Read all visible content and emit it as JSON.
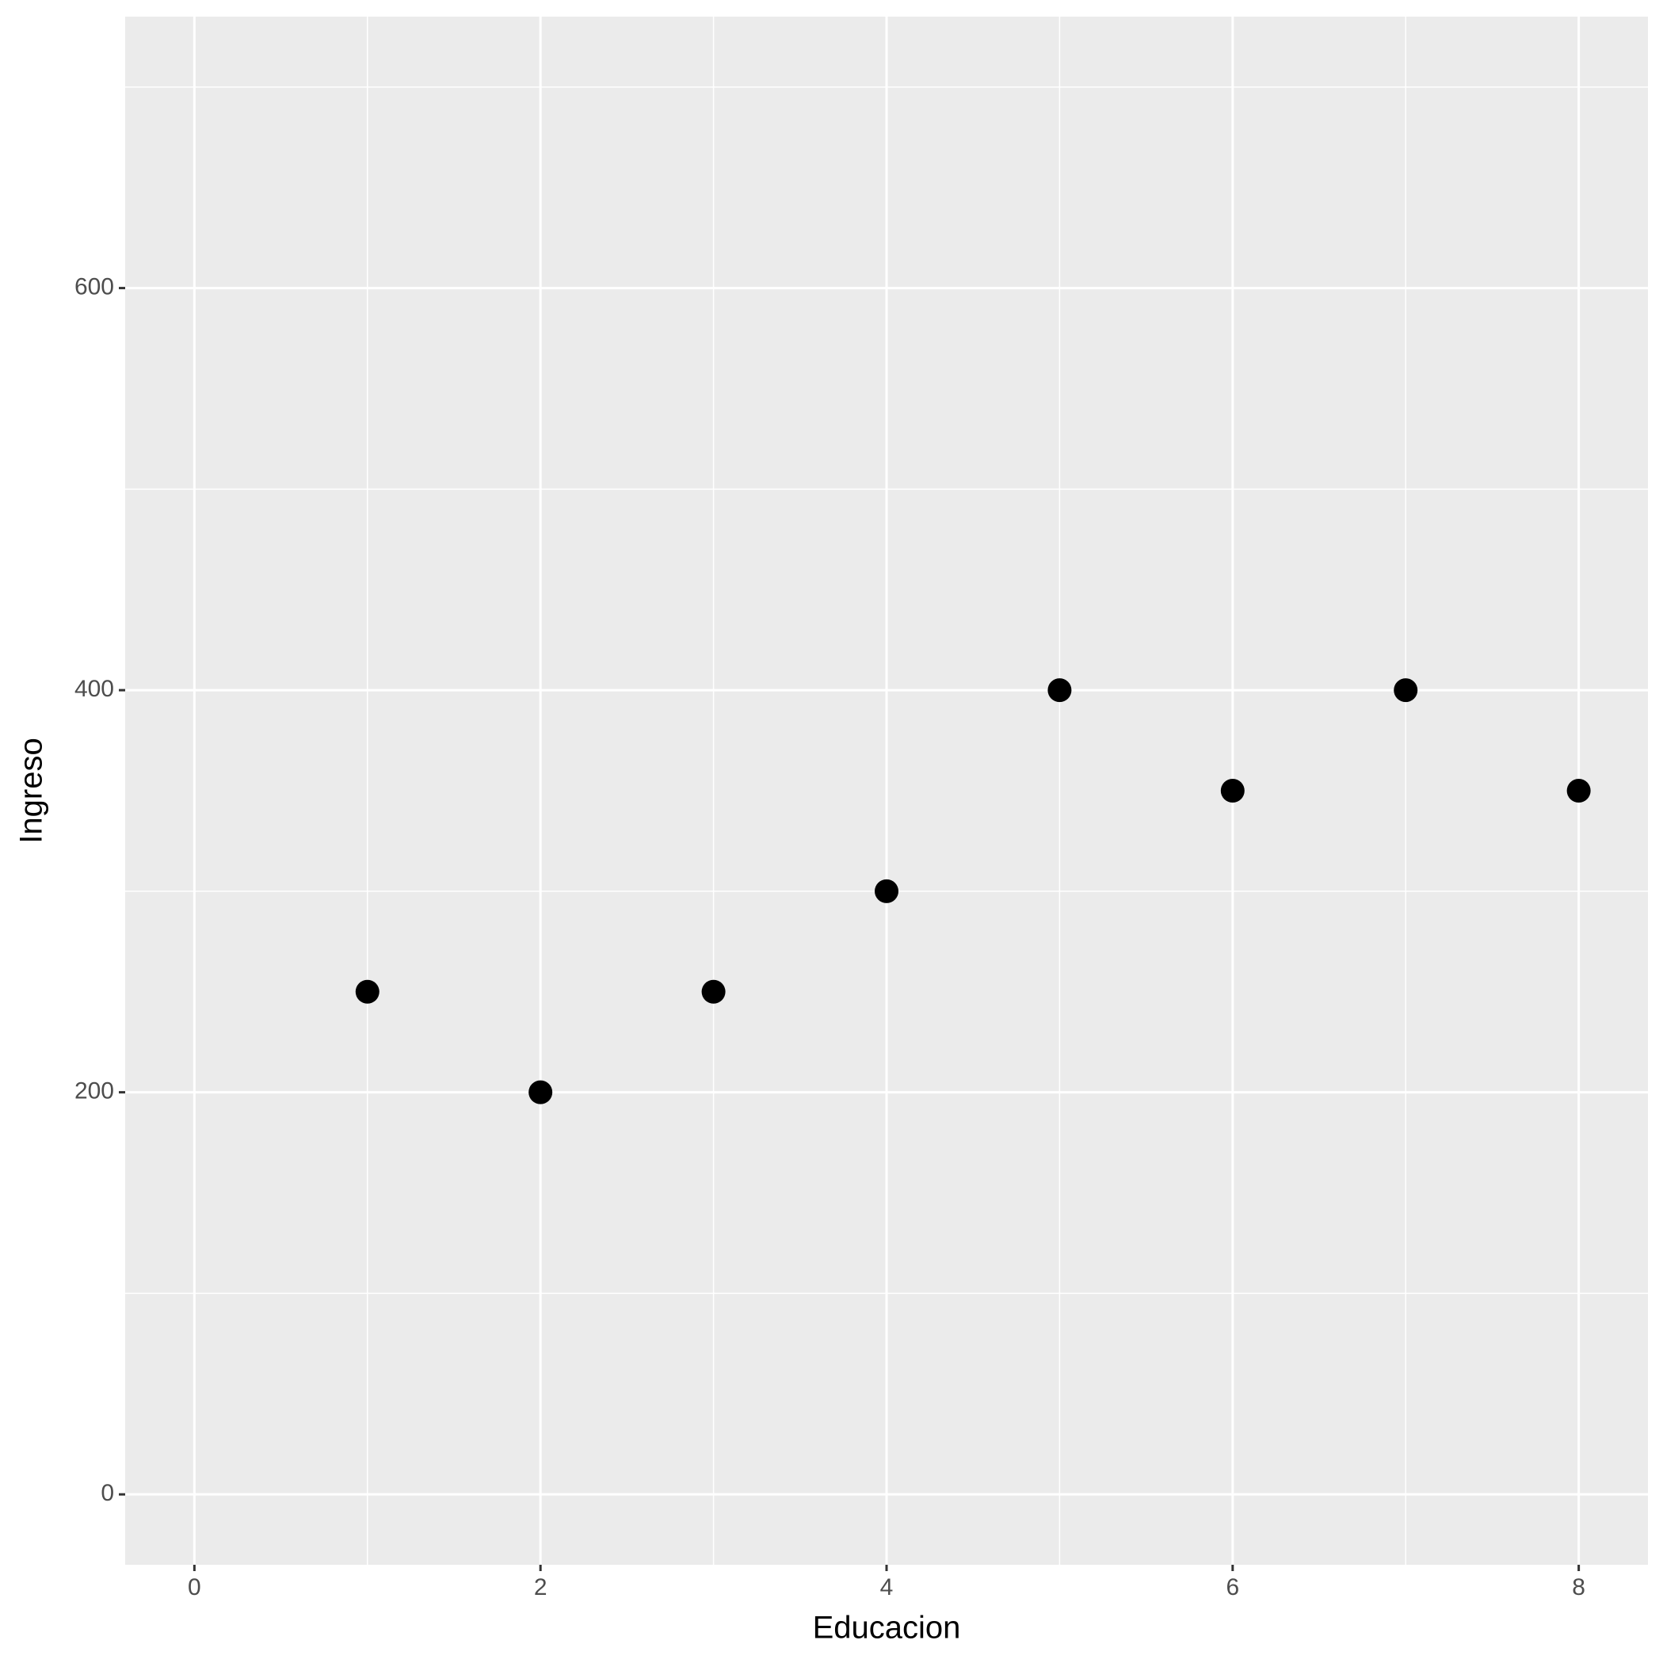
{
  "chart_data": {
    "type": "scatter",
    "x_label": "Educacion",
    "y_label": "Ingreso",
    "x": [
      1,
      2,
      3,
      4,
      5,
      6,
      7,
      8
    ],
    "values": [
      250,
      200,
      250,
      300,
      400,
      350,
      400,
      350
    ],
    "color": "#000000",
    "xlim": [
      -0.4,
      8.4
    ],
    "xticks": [
      0,
      2,
      4,
      6,
      8
    ],
    "minor_xticks": [
      1,
      3,
      5,
      7
    ],
    "ylim": [
      -35,
      735
    ],
    "yticks": [
      0,
      200,
      400,
      600
    ],
    "minor_yticks": [
      100,
      300,
      500,
      700
    ],
    "grid": true
  }
}
